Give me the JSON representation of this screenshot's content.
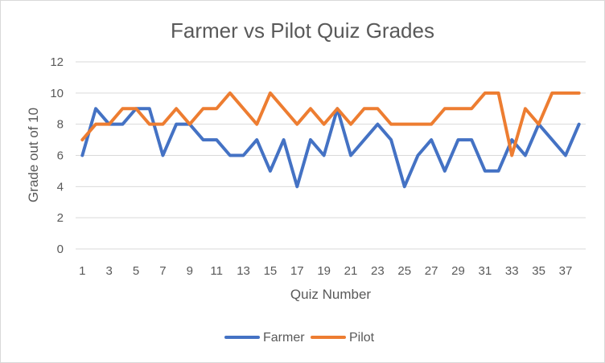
{
  "chart_data": {
    "type": "line",
    "title": "Farmer vs Pilot Quiz Grades",
    "xlabel": "Quiz Number",
    "ylabel": "Grade out of 10",
    "ylim": [
      0,
      12
    ],
    "yticks": [
      0,
      2,
      4,
      6,
      8,
      10,
      12
    ],
    "x": [
      1,
      2,
      3,
      4,
      5,
      6,
      7,
      8,
      9,
      10,
      11,
      12,
      13,
      14,
      15,
      16,
      17,
      18,
      19,
      20,
      21,
      22,
      23,
      24,
      25,
      26,
      27,
      28,
      29,
      30,
      31,
      32,
      33,
      34,
      35,
      36,
      37,
      38
    ],
    "xtick_labels": [
      "1",
      "3",
      "5",
      "7",
      "9",
      "11",
      "13",
      "15",
      "17",
      "19",
      "21",
      "23",
      "25",
      "27",
      "29",
      "31",
      "33",
      "35",
      "37"
    ],
    "grid": "horizontal",
    "legend_position": "bottom",
    "series": [
      {
        "name": "Farmer",
        "color": "#4472c4",
        "values": [
          6,
          9,
          8,
          8,
          9,
          9,
          6,
          8,
          8,
          7,
          7,
          6,
          6,
          7,
          5,
          7,
          4,
          7,
          6,
          9,
          6,
          7,
          8,
          7,
          4,
          6,
          7,
          5,
          7,
          7,
          5,
          5,
          7,
          6,
          8,
          7,
          6,
          8
        ]
      },
      {
        "name": "Pilot",
        "color": "#ed7d31",
        "values": [
          7,
          8,
          8,
          9,
          9,
          8,
          8,
          9,
          8,
          9,
          9,
          10,
          9,
          8,
          10,
          9,
          8,
          9,
          8,
          9,
          8,
          9,
          9,
          8,
          8,
          8,
          8,
          9,
          9,
          9,
          10,
          10,
          6,
          9,
          8,
          10,
          10,
          10
        ]
      }
    ]
  }
}
